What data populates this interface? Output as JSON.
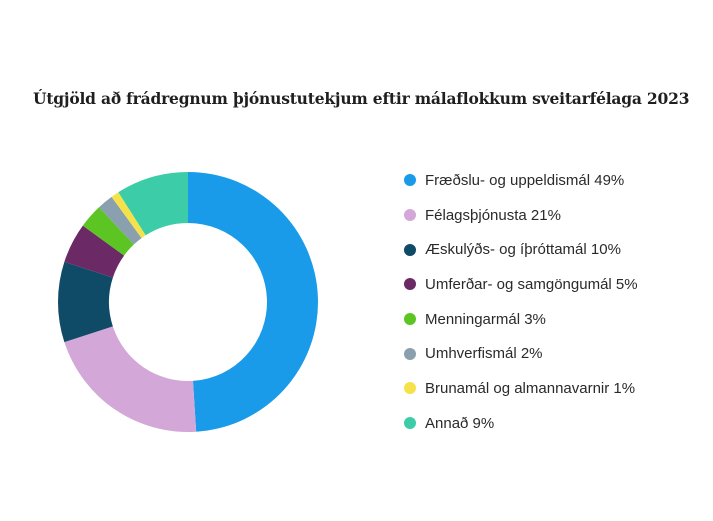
{
  "chart_data": {
    "type": "pie",
    "title": "Útgjöld að frádregnum þjónustutekjum eftir málaflokkum sveitarfélaga 2023",
    "categories": [
      "Fræðslu- og uppeldismál",
      "Félagsþjónusta",
      "Æskulýðs- og íþróttamál",
      "Umferðar- og samgöngumál",
      "Menningarmál",
      "Umhverfismál",
      "Brunamál og almannavarnir",
      "Annað"
    ],
    "values": [
      49,
      21,
      10,
      5,
      3,
      2,
      1,
      9
    ],
    "colors": [
      "#1a9bea",
      "#d3a8d8",
      "#0f4a66",
      "#6b2a66",
      "#5cc524",
      "#8aa0ae",
      "#f5e24a",
      "#3ccda8"
    ],
    "legend_labels": [
      "Fræðslu- og uppeldismál 49%",
      "Félagsþjónusta 21%",
      "Æskulýðs- og íþróttamál 10%",
      "Umferðar- og samgöngumál 5%",
      "Menningarmál 3%",
      "Umhverfismál 2%",
      "Brunamál og almannavarnir 1%",
      "Annað 9%"
    ],
    "legend_position": "right",
    "chart_style": "donut"
  }
}
